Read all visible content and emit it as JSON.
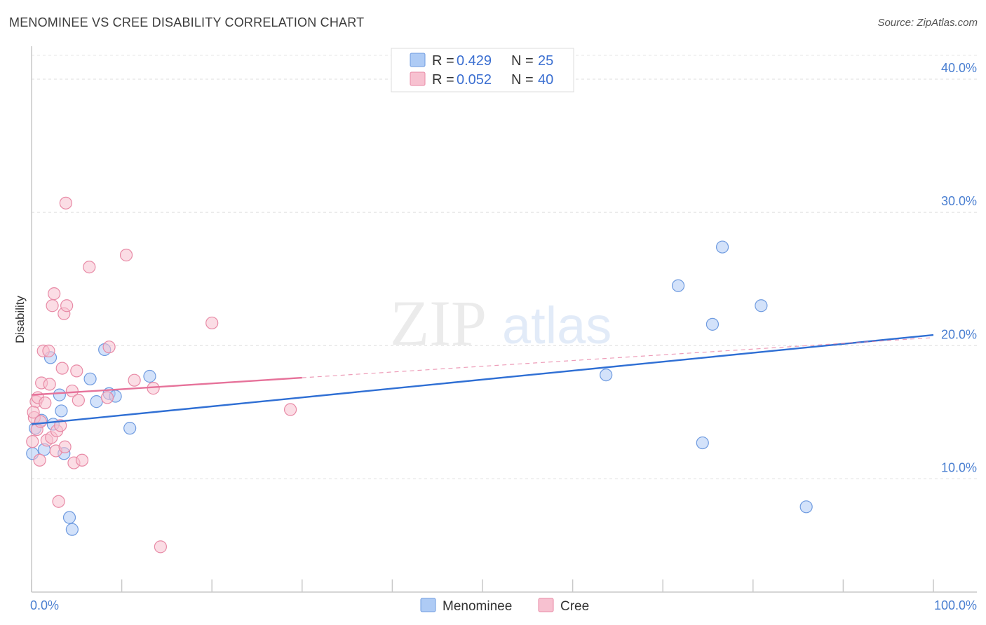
{
  "title": "MENOMINEE VS CREE DISABILITY CORRELATION CHART",
  "source": "Source: ZipAtlas.com",
  "watermark": {
    "zip": "ZIP",
    "atlas": "atlas"
  },
  "legend_top": [
    {
      "r_label": "R =",
      "r_value": "0.429",
      "n_label": "N =",
      "n_value": "25",
      "color": "#aecbf5",
      "stroke": "#6f9be0"
    },
    {
      "r_label": "R =",
      "r_value": "0.052",
      "n_label": "N =",
      "n_value": "40",
      "color": "#f7c1d0",
      "stroke": "#e88aa6"
    }
  ],
  "legend_bottom": [
    {
      "name": "Menominee",
      "color": "#aecbf5",
      "stroke": "#6f9be0"
    },
    {
      "name": "Cree",
      "color": "#f7c1d0",
      "stroke": "#e88aa6"
    }
  ],
  "chart_data": {
    "type": "scatter",
    "title": "MENOMINEE VS CREE DISABILITY CORRELATION CHART",
    "xlabel": "",
    "ylabel": "Disability",
    "xlim": [
      0,
      100
    ],
    "ylim": [
      1.5,
      42
    ],
    "x_tick_labels": [
      "0.0%",
      "100.0%"
    ],
    "y_ticks": [
      10,
      20,
      30,
      40
    ],
    "y_tick_labels": [
      "10.0%",
      "20.0%",
      "30.0%",
      "40.0%"
    ],
    "grid": true,
    "series": [
      {
        "name": "Menominee",
        "color": "#aecbf5",
        "stroke": "#6f9be0",
        "line_color": "#2f6fd4",
        "trend": {
          "x0": 0,
          "y0": 14.1,
          "x1": 100,
          "y1": 20.8,
          "solid_until": 100
        },
        "points": [
          [
            0.1,
            11.9
          ],
          [
            0.4,
            13.8
          ],
          [
            1.1,
            14.4
          ],
          [
            1.4,
            12.2
          ],
          [
            2.1,
            19.1
          ],
          [
            2.4,
            14.1
          ],
          [
            3.1,
            16.3
          ],
          [
            3.3,
            15.1
          ],
          [
            3.6,
            11.9
          ],
          [
            4.2,
            7.1
          ],
          [
            4.5,
            6.2
          ],
          [
            6.5,
            17.5
          ],
          [
            7.2,
            15.8
          ],
          [
            8.1,
            19.7
          ],
          [
            8.6,
            16.4
          ],
          [
            9.3,
            16.2
          ],
          [
            10.9,
            13.8
          ],
          [
            13.1,
            17.7
          ],
          [
            63.7,
            17.8
          ],
          [
            71.7,
            24.5
          ],
          [
            74.4,
            12.7
          ],
          [
            75.5,
            21.6
          ],
          [
            76.6,
            27.4
          ],
          [
            80.9,
            23.0
          ],
          [
            85.9,
            7.9
          ]
        ]
      },
      {
        "name": "Cree",
        "color": "#f7c1d0",
        "stroke": "#e88aa6",
        "line_color": "#e6729a",
        "trend": {
          "x0": 0,
          "y0": 16.3,
          "x1": 100,
          "y1": 20.6,
          "solid_until": 30
        },
        "points": [
          [
            0.1,
            12.8
          ],
          [
            0.3,
            14.6
          ],
          [
            0.5,
            15.8
          ],
          [
            0.6,
            13.7
          ],
          [
            0.7,
            16.1
          ],
          [
            1.0,
            14.3
          ],
          [
            1.1,
            17.2
          ],
          [
            1.3,
            19.6
          ],
          [
            1.5,
            15.7
          ],
          [
            1.7,
            12.9
          ],
          [
            1.9,
            19.6
          ],
          [
            2.0,
            17.1
          ],
          [
            2.2,
            13.1
          ],
          [
            2.3,
            23.0
          ],
          [
            2.5,
            23.9
          ],
          [
            2.7,
            12.1
          ],
          [
            2.8,
            13.6
          ],
          [
            3.0,
            8.3
          ],
          [
            3.2,
            14.0
          ],
          [
            3.4,
            18.3
          ],
          [
            3.6,
            22.4
          ],
          [
            3.7,
            12.4
          ],
          [
            3.9,
            23.0
          ],
          [
            3.8,
            30.7
          ],
          [
            4.5,
            16.6
          ],
          [
            4.7,
            11.2
          ],
          [
            5.0,
            18.1
          ],
          [
            5.2,
            15.9
          ],
          [
            5.6,
            11.4
          ],
          [
            6.4,
            25.9
          ],
          [
            8.4,
            16.1
          ],
          [
            8.6,
            19.9
          ],
          [
            10.5,
            26.8
          ],
          [
            11.4,
            17.4
          ],
          [
            13.5,
            16.8
          ],
          [
            14.3,
            4.9
          ],
          [
            20.0,
            21.7
          ],
          [
            28.7,
            15.2
          ],
          [
            0.2,
            15.0
          ],
          [
            0.9,
            11.4
          ]
        ]
      }
    ]
  }
}
